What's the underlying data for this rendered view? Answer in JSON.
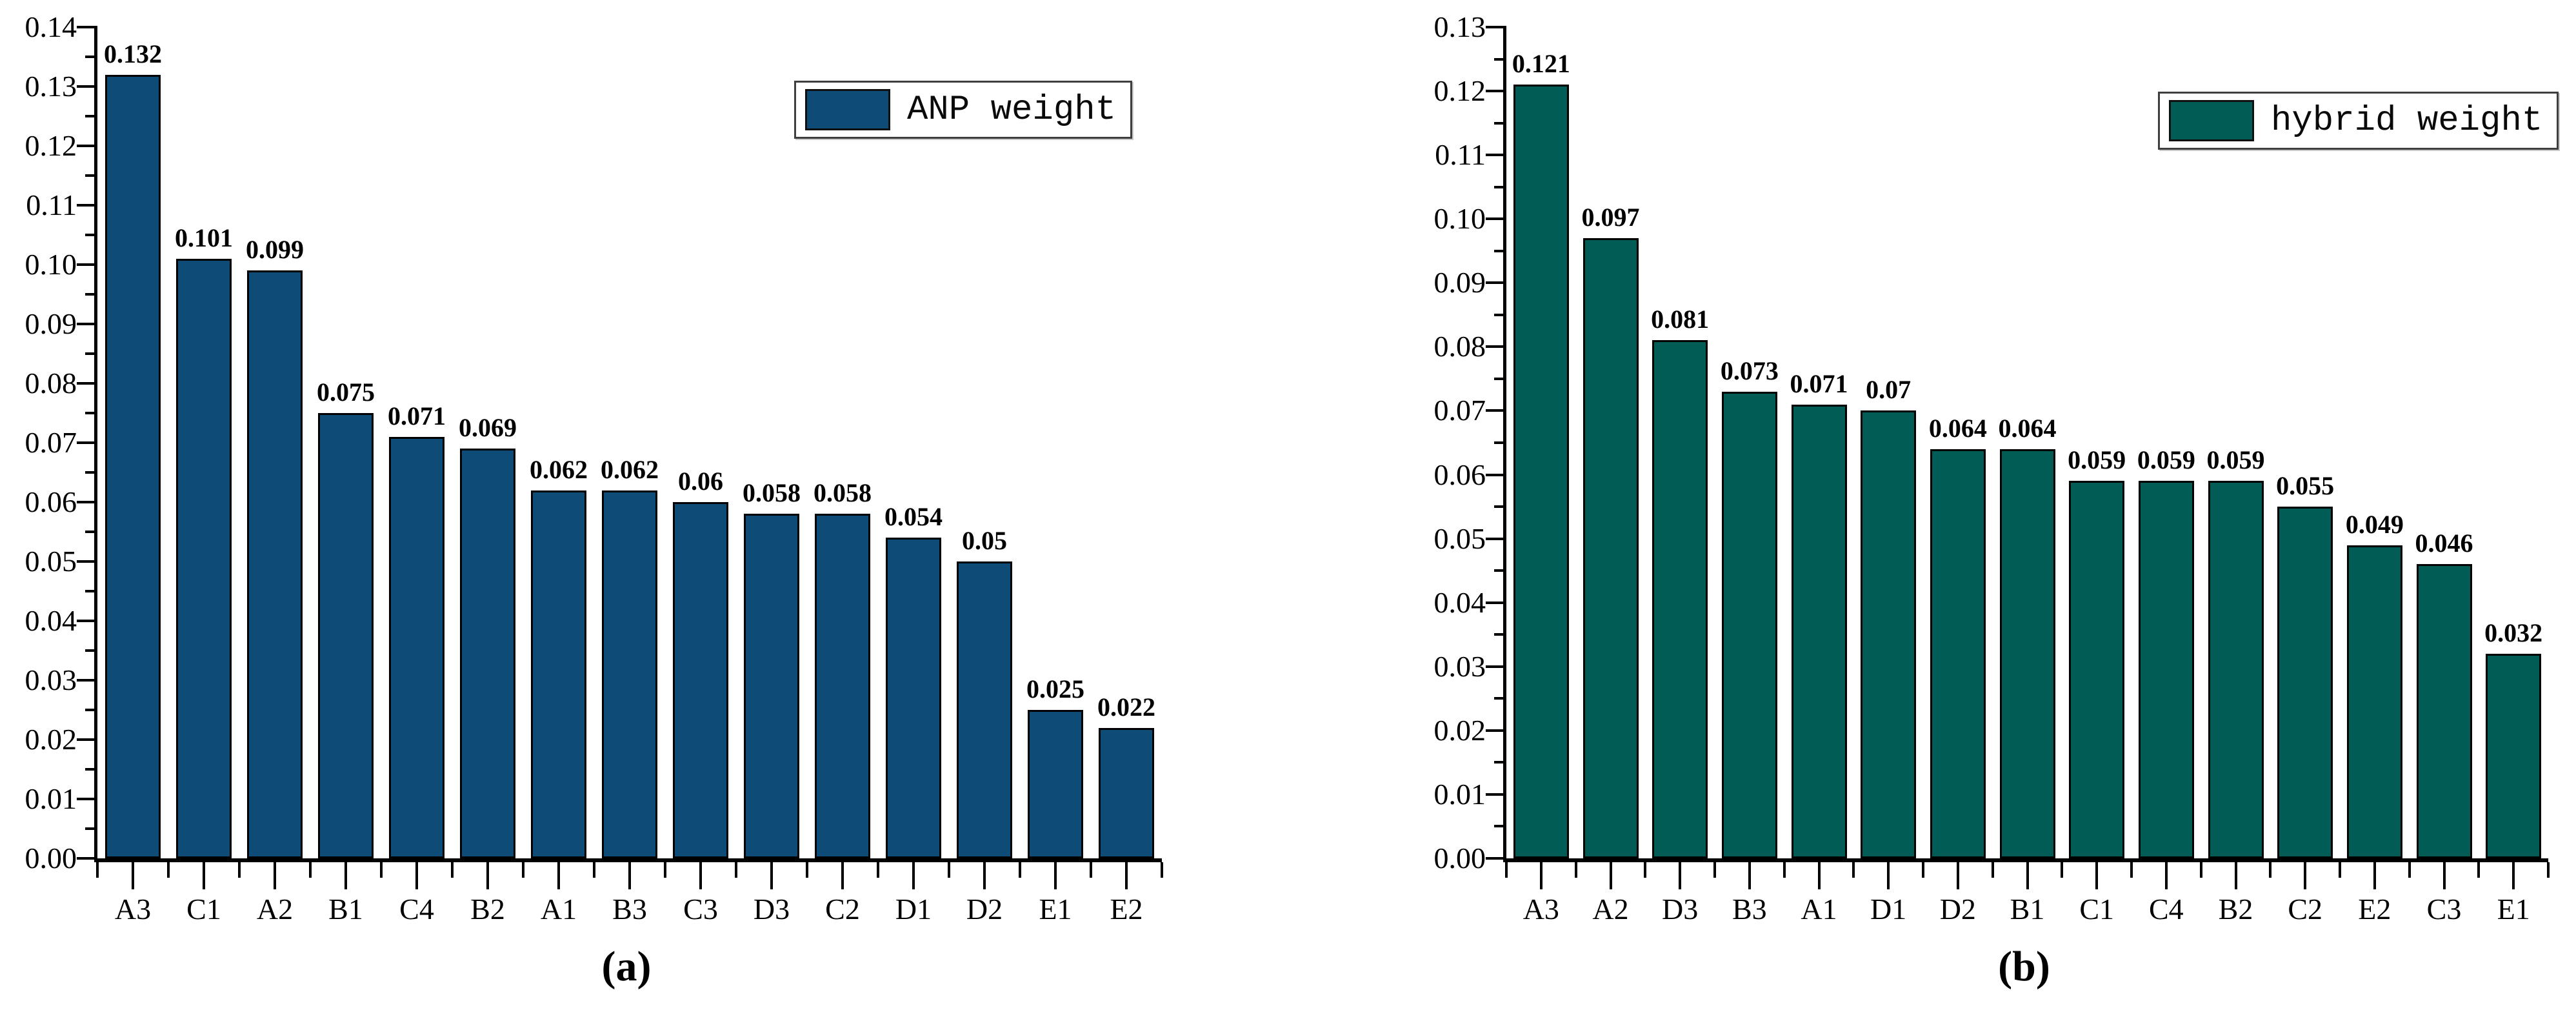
{
  "figure": {
    "captions": {
      "a": "(a)",
      "b": "(b)"
    }
  },
  "chart_data": [
    {
      "type": "bar",
      "title": "",
      "legend": "ANP weight",
      "legend_position": "top-right",
      "bar_color": "#0E4C77",
      "categories": [
        "A3",
        "C1",
        "A2",
        "B1",
        "C4",
        "B2",
        "A1",
        "B3",
        "C3",
        "D3",
        "C2",
        "D1",
        "D2",
        "E1",
        "E2"
      ],
      "values": [
        0.132,
        0.101,
        0.099,
        0.075,
        0.071,
        0.069,
        0.062,
        0.062,
        0.06,
        0.058,
        0.058,
        0.054,
        0.05,
        0.025,
        0.022
      ],
      "value_labels": [
        "0.132",
        "0.101",
        "0.099",
        "0.075",
        "0.071",
        "0.069",
        "0.062",
        "0.062",
        "0.06",
        "0.058",
        "0.058",
        "0.054",
        "0.05",
        "0.025",
        "0.022"
      ],
      "xlabel": "",
      "ylabel": "",
      "ylim": [
        0,
        0.14
      ],
      "ytick_step": 0.01,
      "yminor_step": 0.005,
      "grid": false
    },
    {
      "type": "bar",
      "title": "",
      "legend": "hybrid weight",
      "legend_position": "top-right",
      "bar_color": "#015C56",
      "categories": [
        "A3",
        "A2",
        "D3",
        "B3",
        "A1",
        "D1",
        "D2",
        "B1",
        "C1",
        "C4",
        "B2",
        "C2",
        "E2",
        "C3",
        "E1"
      ],
      "values": [
        0.121,
        0.097,
        0.081,
        0.073,
        0.071,
        0.07,
        0.064,
        0.064,
        0.059,
        0.059,
        0.059,
        0.055,
        0.049,
        0.046,
        0.032
      ],
      "value_labels": [
        "0.121",
        "0.097",
        "0.081",
        "0.073",
        "0.071",
        "0.07",
        "0.064",
        "0.064",
        "0.059",
        "0.059",
        "0.059",
        "0.055",
        "0.049",
        "0.046",
        "0.032"
      ],
      "xlabel": "",
      "ylabel": "",
      "ylim": [
        0,
        0.13
      ],
      "ytick_step": 0.01,
      "yminor_step": 0.005,
      "grid": false
    }
  ]
}
